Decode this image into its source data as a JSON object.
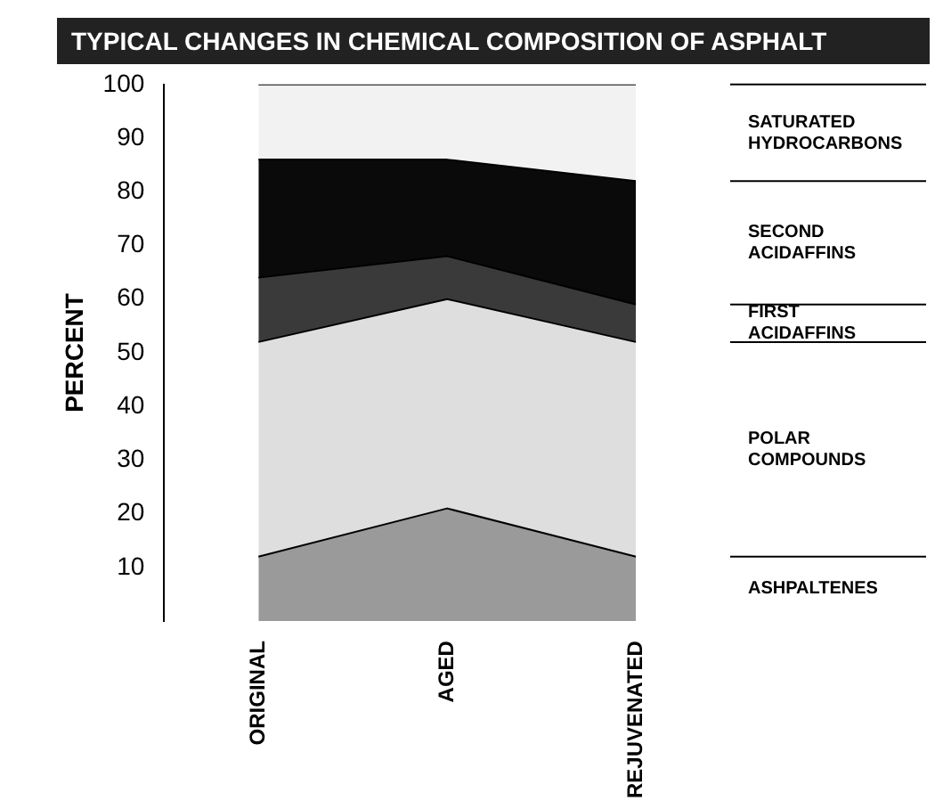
{
  "chart_data": {
    "type": "area",
    "title": "TYPICAL CHANGES IN CHEMICAL COMPOSITION OF ASPHALT",
    "ylabel": "PERCENT",
    "categories": [
      "ORIGINAL",
      "AGED",
      "REJUVENATED"
    ],
    "stacked": true,
    "ylim": [
      0,
      100
    ],
    "yticks": [
      10,
      20,
      30,
      40,
      50,
      60,
      70,
      80,
      90,
      100
    ],
    "grid": false,
    "legend": false,
    "marker": "none",
    "series": [
      {
        "name": "ASHPALTENES",
        "color": "#9a9a9a",
        "values": [
          12,
          21,
          12
        ]
      },
      {
        "name": "POLAR COMPOUNDS",
        "color": "#dedede",
        "values": [
          40,
          39,
          40
        ]
      },
      {
        "name": "FIRST ACIDAFFINS",
        "color": "#3a3a3a",
        "values": [
          12,
          8,
          7
        ]
      },
      {
        "name": "SECOND ACIDAFFINS",
        "color": "#0a0a0a",
        "values": [
          22,
          18,
          23
        ]
      },
      {
        "name": "SATURATED HYDROCARBONS",
        "color": "#f2f2f2",
        "values": [
          14,
          14,
          18
        ]
      }
    ]
  }
}
